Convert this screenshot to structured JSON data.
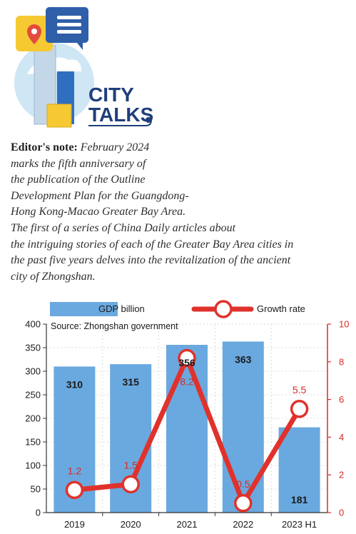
{
  "header": {
    "logo_line1": "CITY",
    "logo_line2": "TALKS"
  },
  "note": {
    "lead": "Editor's note:",
    "lines": [
      " February 2024",
      "marks the fifth anniversary of",
      "the publication of the Outline",
      "Development Plan for the Guangdong-",
      "Hong Kong-Macao Greater Bay Area.",
      "The first of a series of China Daily articles about",
      "the intriguing stories of each of the Greater Bay Area cities in",
      "the past five years delves into the revitalization of the ancient",
      "city of Zhongshan."
    ]
  },
  "colors": {
    "bar": "#6aa9df",
    "line": "#e0322c",
    "marker_fill": "#ffffff",
    "right_axis": "#d62b26",
    "navy": "#1f3f7a"
  },
  "chart_data": {
    "type": "bar",
    "source": "Source: Zhongshan government",
    "categories": [
      "2019",
      "2020",
      "2021",
      "2022",
      "2023 H1"
    ],
    "series": [
      {
        "name": "GDP billion",
        "type": "bar",
        "axis": "left",
        "values": [
          310,
          315,
          356,
          363,
          181
        ]
      },
      {
        "name": "Growth rate",
        "type": "line",
        "axis": "right",
        "values": [
          1.2,
          1.5,
          8.2,
          0.5,
          5.5
        ]
      }
    ],
    "left_axis": {
      "min": 0,
      "max": 400,
      "ticks": [
        "0",
        "50",
        "100",
        "150",
        "200",
        "250",
        "300",
        "350",
        "400"
      ]
    },
    "right_axis": {
      "min": 0,
      "max": 10,
      "ticks": [
        "0",
        "2",
        "4",
        "6",
        "8",
        "10"
      ]
    },
    "bar_labels": [
      "310",
      "315",
      "356",
      "363",
      "181"
    ],
    "rate_labels": [
      "1.2",
      "1.5",
      "8.2",
      "0.5",
      "5.5"
    ],
    "legend_placement": "top"
  }
}
